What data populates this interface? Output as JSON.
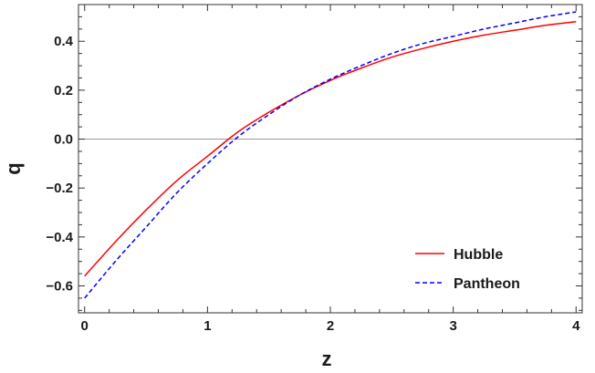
{
  "chart_data": {
    "type": "line",
    "xlabel": "z",
    "ylabel": "q",
    "xlim": [
      -0.05,
      4.05
    ],
    "ylim": [
      -0.71,
      0.55
    ],
    "x_ticks": [
      0,
      1,
      2,
      3,
      4
    ],
    "y_ticks": [
      -0.6,
      -0.4,
      -0.2,
      0.0,
      0.2,
      0.4
    ],
    "x_tick_labels": [
      "0",
      "1",
      "2",
      "3",
      "4"
    ],
    "y_tick_labels": [
      "-0.6",
      "-0.4",
      "-0.2",
      "0.0",
      "0.2",
      "0.4"
    ],
    "reference_line_y": 0.0,
    "legend_position": "bottom-right",
    "grid": false,
    "series": [
      {
        "name": "Hubble",
        "color": "#ff0000",
        "style": "solid",
        "x": [
          0,
          0.25,
          0.5,
          0.75,
          1.0,
          1.25,
          1.5,
          1.75,
          2.0,
          2.25,
          2.5,
          2.75,
          3.0,
          3.25,
          3.5,
          3.75,
          4.0
        ],
        "y": [
          -0.56,
          -0.42,
          -0.29,
          -0.17,
          -0.07,
          0.03,
          0.11,
          0.18,
          0.24,
          0.29,
          0.335,
          0.37,
          0.4,
          0.425,
          0.445,
          0.465,
          0.48
        ]
      },
      {
        "name": "Pantheon",
        "color": "#0000ff",
        "style": "dashed",
        "x": [
          0,
          0.25,
          0.5,
          0.75,
          1.0,
          1.25,
          1.5,
          1.75,
          2.0,
          2.25,
          2.5,
          2.75,
          3.0,
          3.25,
          3.5,
          3.75,
          4.0
        ],
        "y": [
          -0.65,
          -0.5,
          -0.36,
          -0.22,
          -0.1,
          0.01,
          0.1,
          0.18,
          0.245,
          0.3,
          0.35,
          0.39,
          0.42,
          0.45,
          0.475,
          0.5,
          0.52
        ]
      }
    ]
  }
}
